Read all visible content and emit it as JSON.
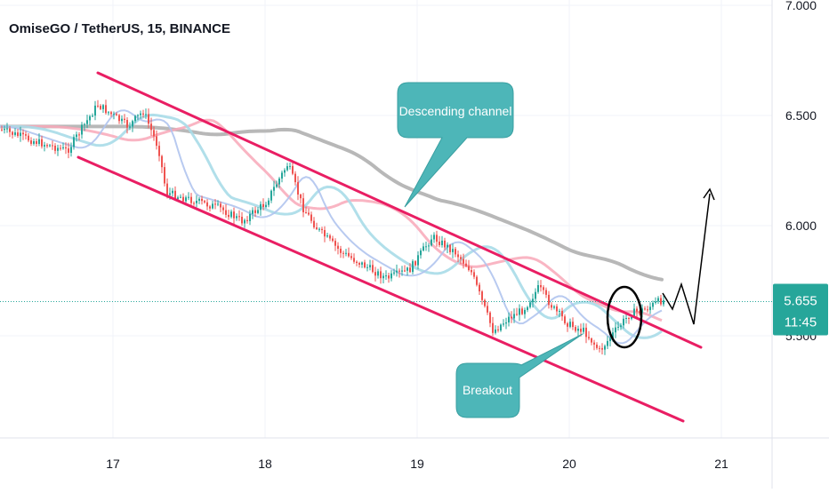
{
  "header": {
    "symbol_title": "OmiseGO / TetherUS, 15, BINANCE"
  },
  "chart_data": {
    "type": "line",
    "title": "OmiseGO / TetherUS, 15, BINANCE",
    "y_ticks": [
      "7.000",
      "6.500",
      "6.000",
      "5.500"
    ],
    "x_ticks": [
      "17",
      "18",
      "19",
      "20",
      "21"
    ],
    "ylim": [
      5.0,
      7.0
    ],
    "grid": true,
    "current_price": "5.655",
    "countdown": "11:45",
    "colors": {
      "up_candle": "#26a69a",
      "down_candle": "#ef5350",
      "channel": "#e91e63",
      "callout": "#4db6b8",
      "ma_gray": "#b8b8b8",
      "ma_pink": "#f8a8b8",
      "ma_lightblue": "#a8dce8",
      "ma_blue": "#b0c4ee",
      "price_tag": "#26a69a"
    },
    "series": [
      {
        "values": [
          [
            16.2,
            6.45
          ],
          [
            16.5,
            6.38
          ],
          [
            16.7,
            6.34
          ],
          [
            16.9,
            6.55
          ],
          [
            17.1,
            6.45
          ],
          [
            17.2,
            6.52
          ],
          [
            17.3,
            6.35
          ],
          [
            17.35,
            6.15
          ],
          [
            17.5,
            6.12
          ],
          [
            17.7,
            6.08
          ],
          [
            17.85,
            6.02
          ],
          [
            18.0,
            6.1
          ],
          [
            18.15,
            6.28
          ],
          [
            18.25,
            6.08
          ],
          [
            18.35,
            5.98
          ],
          [
            18.5,
            5.88
          ],
          [
            18.65,
            5.82
          ],
          [
            18.8,
            5.76
          ],
          [
            18.95,
            5.8
          ],
          [
            19.1,
            5.95
          ],
          [
            19.25,
            5.88
          ],
          [
            19.35,
            5.8
          ],
          [
            19.5,
            5.52
          ],
          [
            19.6,
            5.58
          ],
          [
            19.7,
            5.62
          ],
          [
            19.8,
            5.72
          ],
          [
            19.9,
            5.62
          ],
          [
            20.0,
            5.55
          ],
          [
            20.1,
            5.52
          ],
          [
            20.2,
            5.43
          ],
          [
            20.3,
            5.52
          ],
          [
            20.4,
            5.6
          ],
          [
            20.5,
            5.62
          ],
          [
            20.6,
            5.66
          ]
        ]
      }
    ],
    "annotations": [
      {
        "text": "Descending channel"
      },
      {
        "text": "Breakout"
      }
    ]
  }
}
